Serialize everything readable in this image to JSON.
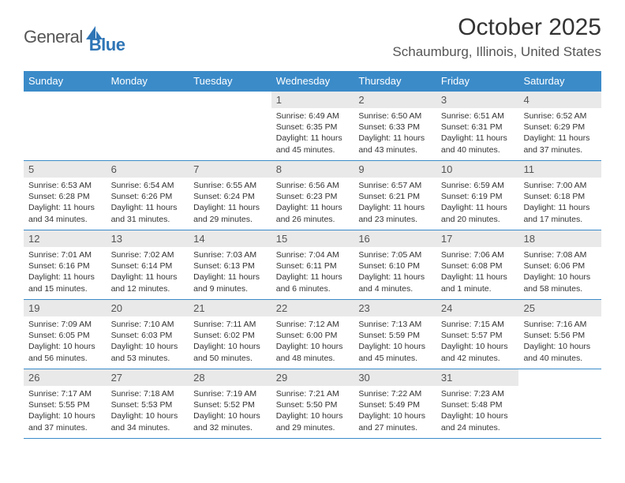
{
  "logo": {
    "text1": "General",
    "text2": "Blue"
  },
  "title": "October 2025",
  "location": "Schaumburg, Illinois, United States",
  "colors": {
    "header_bg": "#3b8bc9",
    "header_text": "#ffffff",
    "daynum_bg": "#e9e9e9",
    "rule": "#3b8bc9",
    "logo_blue": "#2e75b6"
  },
  "weekdays": [
    "Sunday",
    "Monday",
    "Tuesday",
    "Wednesday",
    "Thursday",
    "Friday",
    "Saturday"
  ],
  "weeks": [
    [
      {
        "empty": true
      },
      {
        "empty": true
      },
      {
        "empty": true
      },
      {
        "num": "1",
        "sunrise": "6:49 AM",
        "sunset": "6:35 PM",
        "daylight": "11 hours and 45 minutes."
      },
      {
        "num": "2",
        "sunrise": "6:50 AM",
        "sunset": "6:33 PM",
        "daylight": "11 hours and 43 minutes."
      },
      {
        "num": "3",
        "sunrise": "6:51 AM",
        "sunset": "6:31 PM",
        "daylight": "11 hours and 40 minutes."
      },
      {
        "num": "4",
        "sunrise": "6:52 AM",
        "sunset": "6:29 PM",
        "daylight": "11 hours and 37 minutes."
      }
    ],
    [
      {
        "num": "5",
        "sunrise": "6:53 AM",
        "sunset": "6:28 PM",
        "daylight": "11 hours and 34 minutes."
      },
      {
        "num": "6",
        "sunrise": "6:54 AM",
        "sunset": "6:26 PM",
        "daylight": "11 hours and 31 minutes."
      },
      {
        "num": "7",
        "sunrise": "6:55 AM",
        "sunset": "6:24 PM",
        "daylight": "11 hours and 29 minutes."
      },
      {
        "num": "8",
        "sunrise": "6:56 AM",
        "sunset": "6:23 PM",
        "daylight": "11 hours and 26 minutes."
      },
      {
        "num": "9",
        "sunrise": "6:57 AM",
        "sunset": "6:21 PM",
        "daylight": "11 hours and 23 minutes."
      },
      {
        "num": "10",
        "sunrise": "6:59 AM",
        "sunset": "6:19 PM",
        "daylight": "11 hours and 20 minutes."
      },
      {
        "num": "11",
        "sunrise": "7:00 AM",
        "sunset": "6:18 PM",
        "daylight": "11 hours and 17 minutes."
      }
    ],
    [
      {
        "num": "12",
        "sunrise": "7:01 AM",
        "sunset": "6:16 PM",
        "daylight": "11 hours and 15 minutes."
      },
      {
        "num": "13",
        "sunrise": "7:02 AM",
        "sunset": "6:14 PM",
        "daylight": "11 hours and 12 minutes."
      },
      {
        "num": "14",
        "sunrise": "7:03 AM",
        "sunset": "6:13 PM",
        "daylight": "11 hours and 9 minutes."
      },
      {
        "num": "15",
        "sunrise": "7:04 AM",
        "sunset": "6:11 PM",
        "daylight": "11 hours and 6 minutes."
      },
      {
        "num": "16",
        "sunrise": "7:05 AM",
        "sunset": "6:10 PM",
        "daylight": "11 hours and 4 minutes."
      },
      {
        "num": "17",
        "sunrise": "7:06 AM",
        "sunset": "6:08 PM",
        "daylight": "11 hours and 1 minute."
      },
      {
        "num": "18",
        "sunrise": "7:08 AM",
        "sunset": "6:06 PM",
        "daylight": "10 hours and 58 minutes."
      }
    ],
    [
      {
        "num": "19",
        "sunrise": "7:09 AM",
        "sunset": "6:05 PM",
        "daylight": "10 hours and 56 minutes."
      },
      {
        "num": "20",
        "sunrise": "7:10 AM",
        "sunset": "6:03 PM",
        "daylight": "10 hours and 53 minutes."
      },
      {
        "num": "21",
        "sunrise": "7:11 AM",
        "sunset": "6:02 PM",
        "daylight": "10 hours and 50 minutes."
      },
      {
        "num": "22",
        "sunrise": "7:12 AM",
        "sunset": "6:00 PM",
        "daylight": "10 hours and 48 minutes."
      },
      {
        "num": "23",
        "sunrise": "7:13 AM",
        "sunset": "5:59 PM",
        "daylight": "10 hours and 45 minutes."
      },
      {
        "num": "24",
        "sunrise": "7:15 AM",
        "sunset": "5:57 PM",
        "daylight": "10 hours and 42 minutes."
      },
      {
        "num": "25",
        "sunrise": "7:16 AM",
        "sunset": "5:56 PM",
        "daylight": "10 hours and 40 minutes."
      }
    ],
    [
      {
        "num": "26",
        "sunrise": "7:17 AM",
        "sunset": "5:55 PM",
        "daylight": "10 hours and 37 minutes."
      },
      {
        "num": "27",
        "sunrise": "7:18 AM",
        "sunset": "5:53 PM",
        "daylight": "10 hours and 34 minutes."
      },
      {
        "num": "28",
        "sunrise": "7:19 AM",
        "sunset": "5:52 PM",
        "daylight": "10 hours and 32 minutes."
      },
      {
        "num": "29",
        "sunrise": "7:21 AM",
        "sunset": "5:50 PM",
        "daylight": "10 hours and 29 minutes."
      },
      {
        "num": "30",
        "sunrise": "7:22 AM",
        "sunset": "5:49 PM",
        "daylight": "10 hours and 27 minutes."
      },
      {
        "num": "31",
        "sunrise": "7:23 AM",
        "sunset": "5:48 PM",
        "daylight": "10 hours and 24 minutes."
      },
      {
        "empty": true
      }
    ]
  ]
}
